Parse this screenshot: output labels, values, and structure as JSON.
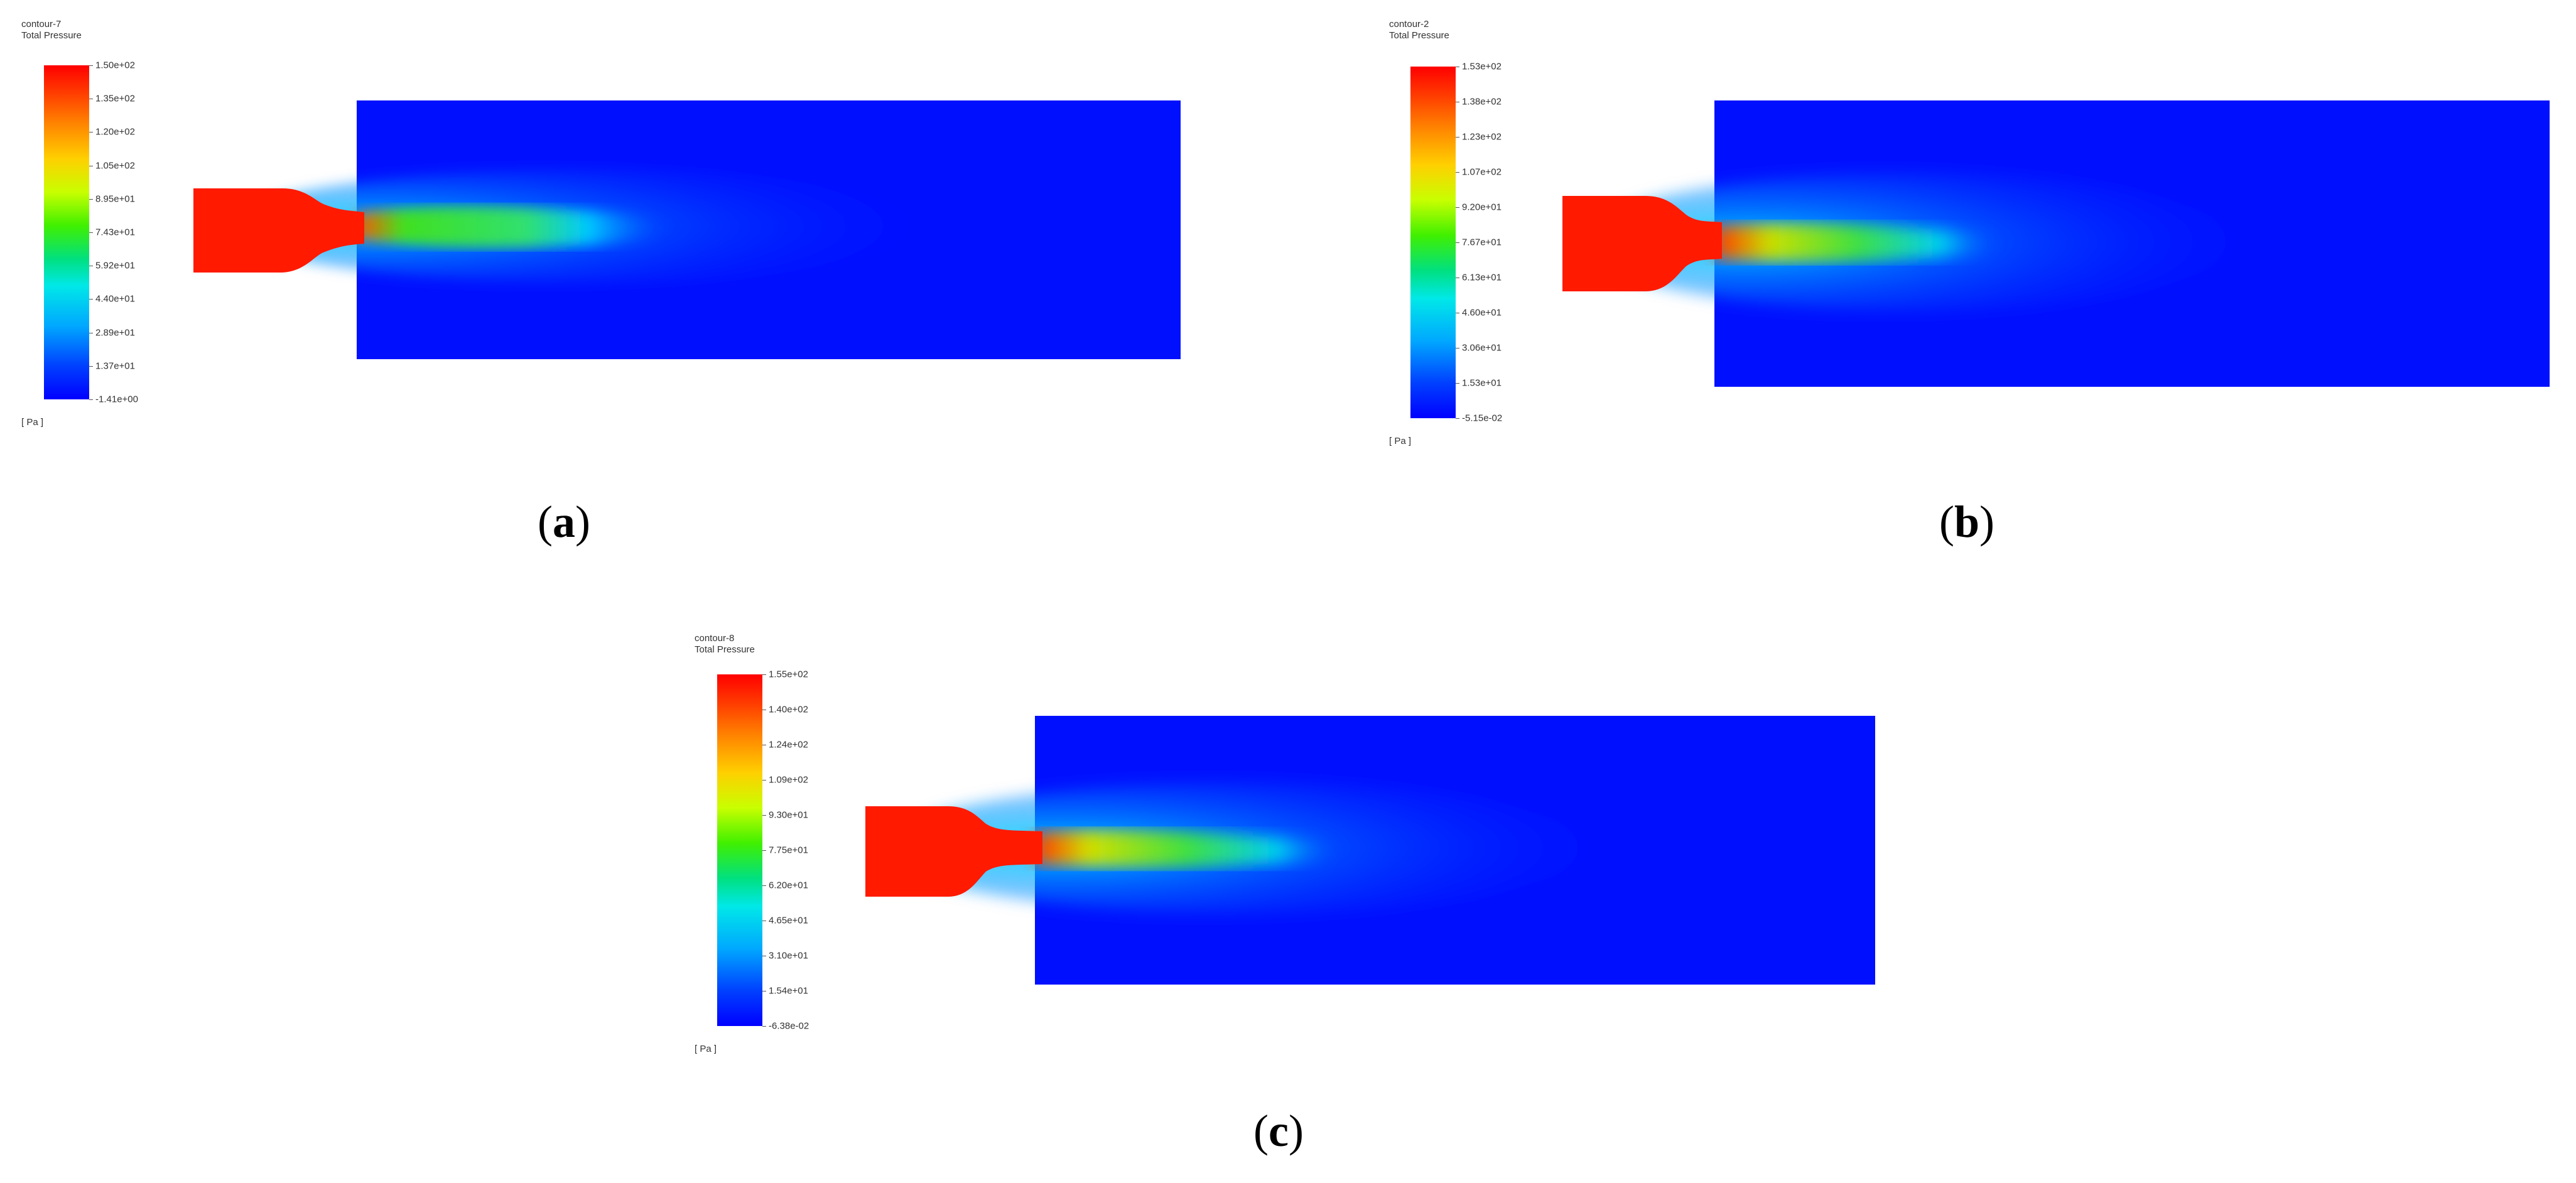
{
  "panels": [
    {
      "id": "a",
      "contour_name": "contour-7",
      "variable": "Total Pressure",
      "unit": "[ Pa ]",
      "colorbar_labels": [
        "1.50e+02",
        "1.35e+02",
        "1.20e+02",
        "1.05e+02",
        "8.95e+01",
        "7.43e+01",
        "5.92e+01",
        "4.40e+01",
        "2.89e+01",
        "1.37e+01",
        "-1.41e+00"
      ],
      "caption_letter": "a"
    },
    {
      "id": "b",
      "contour_name": "contour-2",
      "variable": "Total Pressure",
      "unit": "[ Pa ]",
      "colorbar_labels": [
        "1.53e+02",
        "1.38e+02",
        "1.23e+02",
        "1.07e+02",
        "9.20e+01",
        "7.67e+01",
        "6.13e+01",
        "4.60e+01",
        "3.06e+01",
        "1.53e+01",
        "-5.15e-02"
      ],
      "caption_letter": "b"
    },
    {
      "id": "c",
      "contour_name": "contour-8",
      "variable": "Total Pressure",
      "unit": "[ Pa ]",
      "colorbar_labels": [
        "1.55e+02",
        "1.40e+02",
        "1.24e+02",
        "1.09e+02",
        "9.30e+01",
        "7.75e+01",
        "6.20e+01",
        "4.65e+01",
        "3.10e+01",
        "1.54e+01",
        "-6.38e-02"
      ],
      "caption_letter": "c"
    }
  ],
  "colors": {
    "domain_background": "#0010ff",
    "jet_core": "#ff1a00"
  }
}
